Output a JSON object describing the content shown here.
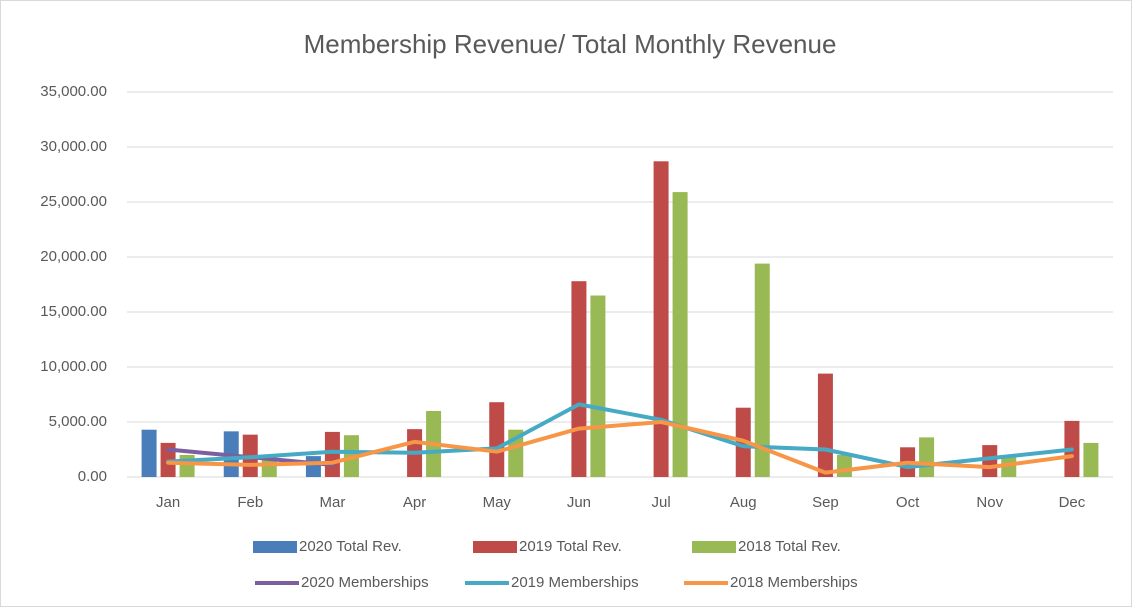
{
  "chart_data": {
    "type": "bar",
    "title": "Membership Revenue/ Total Monthly Revenue",
    "categories": [
      "Jan",
      "Feb",
      "Mar",
      "Apr",
      "May",
      "Jun",
      "Jul",
      "Aug",
      "Sep",
      "Oct",
      "Nov",
      "Dec"
    ],
    "ylim": [
      0,
      35000
    ],
    "yticks": [
      {
        "value": 0,
        "label": "0.00"
      },
      {
        "value": 5000,
        "label": "5,000.00"
      },
      {
        "value": 10000,
        "label": "10,000.00"
      },
      {
        "value": 15000,
        "label": "15,000.00"
      },
      {
        "value": 20000,
        "label": "20,000.00"
      },
      {
        "value": 25000,
        "label": "25,000.00"
      },
      {
        "value": 30000,
        "label": "30,000.00"
      },
      {
        "value": 35000,
        "label": "35,000.00"
      }
    ],
    "grid": true,
    "legend": "bottom",
    "series": [
      {
        "name": "2020 Total Rev.",
        "type": "bar",
        "color": "#4a7ebb",
        "values": [
          4300,
          4150,
          1900,
          null,
          null,
          null,
          null,
          null,
          null,
          null,
          null,
          null
        ]
      },
      {
        "name": "2019 Total Rev.",
        "type": "bar",
        "color": "#be4b48",
        "values": [
          3100,
          3850,
          4100,
          4350,
          6800,
          17800,
          28700,
          6300,
          9400,
          2700,
          2900,
          5100
        ]
      },
      {
        "name": "2018 Total Rev.",
        "type": "bar",
        "color": "#98b954",
        "values": [
          2000,
          1600,
          3800,
          6000,
          4300,
          16500,
          25900,
          19400,
          2000,
          3600,
          2000,
          3100
        ]
      },
      {
        "name": "2020 Memberships",
        "type": "line",
        "color": "#7d5fa0",
        "values": [
          2500,
          1800,
          1100,
          null,
          null,
          null,
          null,
          null,
          null,
          null,
          null,
          null
        ]
      },
      {
        "name": "2019 Memberships",
        "type": "line",
        "color": "#46aac5",
        "values": [
          1400,
          1800,
          2300,
          2200,
          2600,
          6600,
          5200,
          2800,
          2500,
          900,
          1700,
          2500
        ]
      },
      {
        "name": "2018 Memberships",
        "type": "line",
        "color": "#f79646",
        "values": [
          1300,
          1100,
          1300,
          3200,
          2300,
          4400,
          5000,
          3300,
          400,
          1300,
          900,
          1900
        ]
      }
    ]
  }
}
